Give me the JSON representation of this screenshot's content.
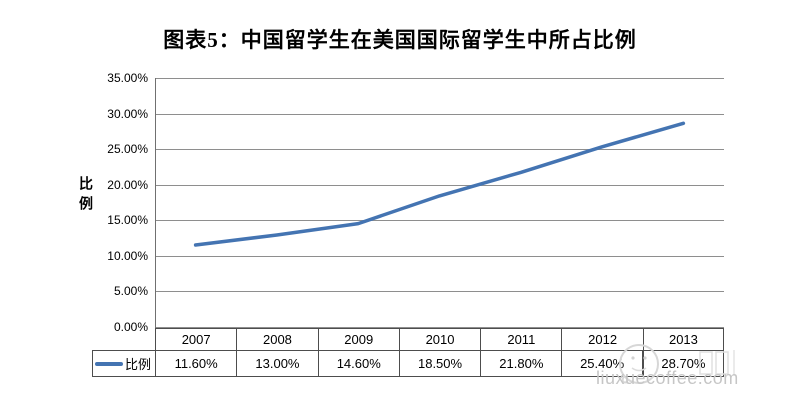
{
  "title": "图表5：中国留学生在美国国际留学生中所占比例",
  "axis": {
    "y_title": "比例",
    "ticks": [
      "35.00%",
      "30.00%",
      "25.00%",
      "20.00%",
      "15.00%",
      "10.00%",
      "5.00%",
      "0.00%"
    ]
  },
  "legend": {
    "label": "比例"
  },
  "table": {
    "values": [
      "11.60%",
      "13.00%",
      "14.60%",
      "18.50%",
      "21.80%",
      "25.40%",
      "28.70%"
    ]
  },
  "watermark": {
    "text": "liuxuecoffee.com"
  },
  "colors": {
    "line": "#4474B2",
    "grid": "#8e8e8e",
    "table_border": "#4d4d4d",
    "watermark": "#c6c6c6"
  },
  "chart_data": {
    "type": "line",
    "title": "图表5：中国留学生在美国国际留学生中所占比例",
    "categories": [
      "2007",
      "2008",
      "2009",
      "2010",
      "2011",
      "2012",
      "2013"
    ],
    "series": [
      {
        "name": "比例",
        "values": [
          11.6,
          13.0,
          14.6,
          18.5,
          21.8,
          25.4,
          28.7
        ]
      }
    ],
    "xlabel": "",
    "ylabel": "比例",
    "ylim": [
      0,
      35
    ],
    "ytick_step": 5,
    "value_format": "percent",
    "grid": true,
    "legend_position": "bottom-left"
  }
}
